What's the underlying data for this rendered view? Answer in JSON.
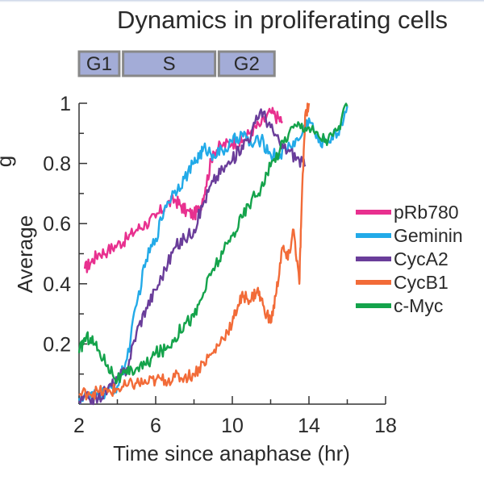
{
  "chart_data": {
    "type": "line",
    "title": "Dynamics in proliferating cells",
    "xlabel": "Time since anaphase (hr)",
    "ylabel": "Average",
    "ylabel_clipped_char": "g",
    "xlim": [
      2,
      18
    ],
    "ylim": [
      0,
      1
    ],
    "xticks": [
      2,
      6,
      10,
      14,
      18
    ],
    "xtick_labels": [
      "2",
      "6",
      "10",
      "14",
      "18"
    ],
    "yticks": [
      0.2,
      0.4,
      0.6,
      0.8,
      1
    ],
    "ytick_labels": [
      "0.2",
      "0.4",
      "0.6",
      "0.8",
      "1"
    ],
    "grid": false,
    "legend": "right",
    "phases": [
      {
        "label": "G1",
        "start": 2.0,
        "end": 4.1
      },
      {
        "label": "S",
        "start": 4.3,
        "end": 9.1
      },
      {
        "label": "G2",
        "start": 9.3,
        "end": 12.2
      }
    ],
    "series": [
      {
        "name": "pRb780",
        "color": "#e8308f",
        "x": [
          2.3,
          2.6,
          3.0,
          3.5,
          4.0,
          4.5,
          5.0,
          5.5,
          6.0,
          6.5,
          7.0,
          7.3,
          7.6,
          8.0,
          8.3,
          8.6,
          9.0,
          9.5,
          10.0,
          10.5,
          11.0,
          11.5,
          12.0,
          12.4,
          12.6
        ],
        "y": [
          0.45,
          0.47,
          0.5,
          0.51,
          0.53,
          0.55,
          0.58,
          0.6,
          0.62,
          0.66,
          0.68,
          0.66,
          0.64,
          0.63,
          0.65,
          0.72,
          0.84,
          0.86,
          0.87,
          0.87,
          0.91,
          0.93,
          0.97,
          0.95,
          0.94
        ]
      },
      {
        "name": "Geminin",
        "color": "#22aae8",
        "x": [
          2.0,
          2.5,
          3.0,
          3.5,
          4.0,
          4.5,
          5.0,
          5.5,
          6.0,
          6.5,
          7.0,
          7.5,
          8.0,
          8.3,
          8.6,
          9.0,
          9.5,
          10.0,
          10.5,
          11.0,
          11.5,
          12.0,
          12.5,
          13.0,
          13.5,
          14.0,
          14.5,
          15.0,
          15.5,
          16.0
        ],
        "y": [
          0.02,
          0.02,
          0.03,
          0.04,
          0.06,
          0.15,
          0.33,
          0.48,
          0.55,
          0.66,
          0.71,
          0.75,
          0.8,
          0.83,
          0.85,
          0.83,
          0.84,
          0.87,
          0.9,
          0.86,
          0.88,
          0.83,
          0.83,
          0.86,
          0.88,
          0.95,
          0.87,
          0.88,
          0.9,
          0.99
        ]
      },
      {
        "name": "CycA2",
        "color": "#6a3d9a",
        "x": [
          2.0,
          2.5,
          3.0,
          3.5,
          4.0,
          4.5,
          5.0,
          5.5,
          6.0,
          6.5,
          7.0,
          7.5,
          8.0,
          8.5,
          9.0,
          9.5,
          10.0,
          10.5,
          11.0,
          11.5,
          12.0,
          12.5,
          13.0,
          13.5,
          13.8
        ],
        "y": [
          0.01,
          0.02,
          0.02,
          0.05,
          0.08,
          0.12,
          0.24,
          0.32,
          0.38,
          0.45,
          0.52,
          0.55,
          0.58,
          0.67,
          0.74,
          0.78,
          0.81,
          0.86,
          0.9,
          0.98,
          0.92,
          0.86,
          0.84,
          0.81,
          0.79
        ]
      },
      {
        "name": "CycB1",
        "color": "#f26b38",
        "x": [
          2.0,
          2.5,
          3.0,
          3.5,
          4.0,
          4.5,
          5.0,
          5.5,
          6.0,
          6.5,
          7.0,
          7.5,
          8.0,
          8.5,
          9.0,
          9.5,
          10.0,
          10.3,
          10.6,
          11.0,
          11.3,
          11.6,
          12.0,
          12.3,
          12.6,
          12.9,
          13.2,
          13.5,
          13.6,
          13.8,
          14.0
        ],
        "y": [
          0.03,
          0.04,
          0.04,
          0.04,
          0.05,
          0.06,
          0.07,
          0.07,
          0.08,
          0.08,
          0.09,
          0.09,
          0.1,
          0.14,
          0.17,
          0.22,
          0.27,
          0.33,
          0.36,
          0.35,
          0.38,
          0.33,
          0.27,
          0.37,
          0.52,
          0.48,
          0.58,
          0.4,
          0.62,
          0.96,
          1.0
        ]
      },
      {
        "name": "c-Myc",
        "color": "#14a34b",
        "x": [
          2.0,
          2.3,
          2.6,
          3.0,
          3.5,
          4.0,
          4.5,
          5.0,
          5.5,
          6.0,
          6.5,
          7.0,
          7.5,
          8.0,
          8.5,
          9.0,
          9.5,
          10.0,
          10.5,
          11.0,
          11.5,
          12.0,
          12.5,
          13.0,
          13.5,
          14.0,
          14.5,
          15.0,
          15.5,
          16.0
        ],
        "y": [
          0.17,
          0.22,
          0.22,
          0.18,
          0.13,
          0.08,
          0.1,
          0.12,
          0.13,
          0.17,
          0.18,
          0.22,
          0.27,
          0.29,
          0.37,
          0.45,
          0.5,
          0.56,
          0.62,
          0.68,
          0.72,
          0.79,
          0.85,
          0.91,
          0.93,
          0.92,
          0.89,
          0.88,
          0.91,
          0.99
        ]
      }
    ]
  }
}
